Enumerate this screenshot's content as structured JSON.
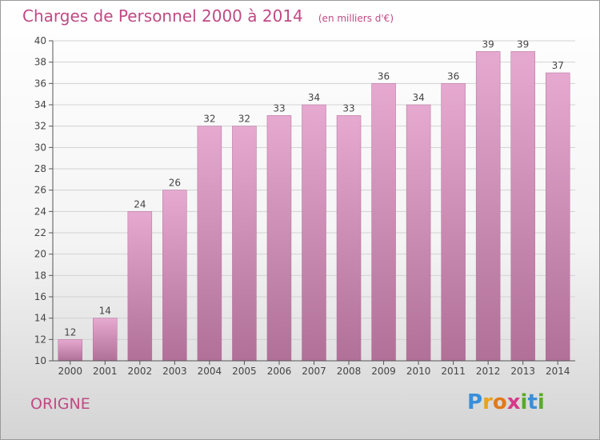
{
  "title": "Charges de Personnel 2000 à 2014",
  "subtitle": "(en milliers d'€)",
  "commune": "ORIGNE",
  "logo": {
    "text": "Proxiti",
    "letters": [
      "P",
      "r",
      "o",
      "x",
      "i",
      "t",
      "i"
    ],
    "colors": [
      "#3a8fd8",
      "#e8a21c",
      "#e07a1a",
      "#d63a8a",
      "#5aaa2a",
      "#3a8fd8",
      "#5aaa2a"
    ]
  },
  "colors": {
    "accent": "#c04a84",
    "bar_top": "#e6a9d0",
    "bar_bottom": "#b07098"
  },
  "chart_data": {
    "type": "bar",
    "title": "Charges de Personnel 2000 à 2014",
    "subtitle": "(en milliers d'€)",
    "categories": [
      "2000",
      "2001",
      "2002",
      "2003",
      "2004",
      "2005",
      "2006",
      "2007",
      "2008",
      "2009",
      "2010",
      "2011",
      "2012",
      "2013",
      "2014"
    ],
    "values": [
      12,
      14,
      24,
      26,
      32,
      32,
      33,
      34,
      33,
      36,
      34,
      36,
      39,
      39,
      37
    ],
    "yticks": [
      10,
      12,
      14,
      16,
      18,
      20,
      22,
      24,
      26,
      28,
      30,
      32,
      34,
      36,
      38,
      40
    ],
    "ylim": [
      10,
      40
    ],
    "grid": true,
    "xlabel": "",
    "ylabel": ""
  }
}
